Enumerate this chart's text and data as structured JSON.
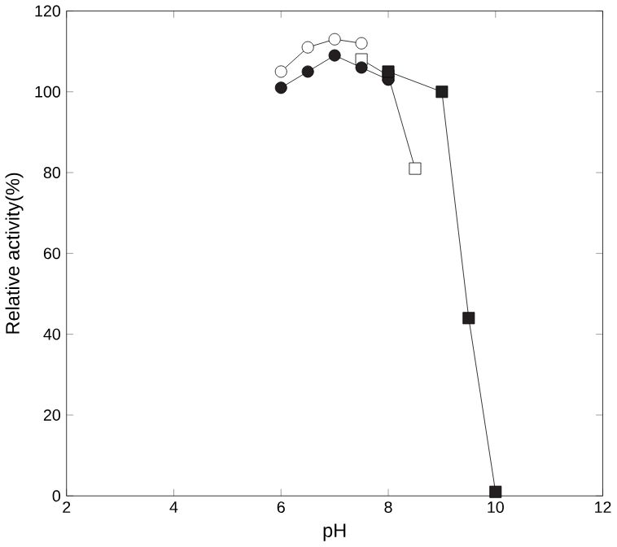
{
  "chart_data": {
    "type": "line",
    "xlabel": "pH",
    "ylabel": "Relative activity(%)",
    "xlim": [
      2,
      12
    ],
    "xticks": [
      2,
      4,
      6,
      8,
      10,
      12
    ],
    "ylim": [
      0,
      120
    ],
    "yticks": [
      0,
      20,
      40,
      60,
      80,
      100,
      120
    ],
    "grid": false,
    "line_style": "solid",
    "series": [
      {
        "marker": "circle",
        "color": "#ffffff",
        "x": [
          6,
          6.5,
          7,
          7.5
        ],
        "values": [
          105,
          111,
          113,
          112
        ]
      },
      {
        "marker": "square",
        "color": "#ffffff",
        "x": [
          7.5,
          8,
          8.5
        ],
        "values": [
          108,
          104,
          81
        ]
      },
      {
        "marker": "circle",
        "color": "#231f20",
        "x": [
          6,
          6.5,
          7,
          7.5,
          8
        ],
        "values": [
          101,
          105,
          109,
          106,
          103
        ]
      },
      {
        "marker": "square",
        "color": "#231f20",
        "x": [
          8,
          9,
          9.5,
          10
        ],
        "values": [
          105,
          100,
          44,
          1
        ]
      }
    ]
  }
}
